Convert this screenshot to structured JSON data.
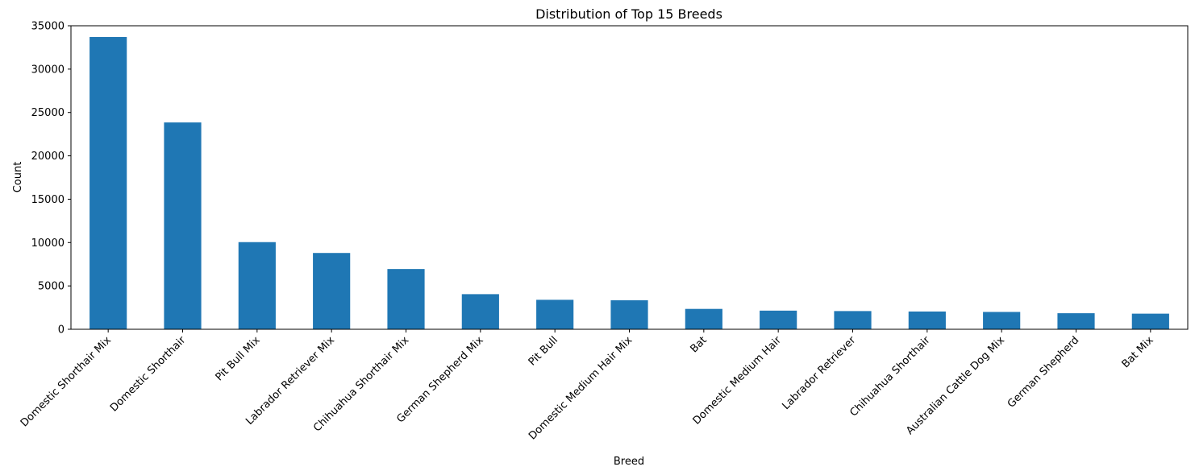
{
  "chart_data": {
    "type": "bar",
    "title": "Distribution of Top 15 Breeds",
    "xlabel": "Breed",
    "ylabel": "Count",
    "categories": [
      "Domestic Shorthair Mix",
      "Domestic Shorthair",
      "Pit Bull Mix",
      "Labrador Retriever Mix",
      "Chihuahua Shorthair Mix",
      "German Shepherd Mix",
      "Pit Bull",
      "Domestic Medium Hair Mix",
      "Bat",
      "Domestic Medium Hair",
      "Labrador Retriever",
      "Chihuahua Shorthair",
      "Australian Cattle Dog Mix",
      "German Shepherd",
      "Bat Mix"
    ],
    "values": [
      33700,
      23850,
      10050,
      8800,
      6950,
      4050,
      3400,
      3350,
      2350,
      2150,
      2100,
      2050,
      2000,
      1850,
      1800
    ],
    "ylim": [
      0,
      35000
    ],
    "yticks": [
      0,
      5000,
      10000,
      15000,
      20000,
      25000,
      30000,
      35000
    ],
    "grid": false,
    "bar_color": "#1f77b4"
  }
}
